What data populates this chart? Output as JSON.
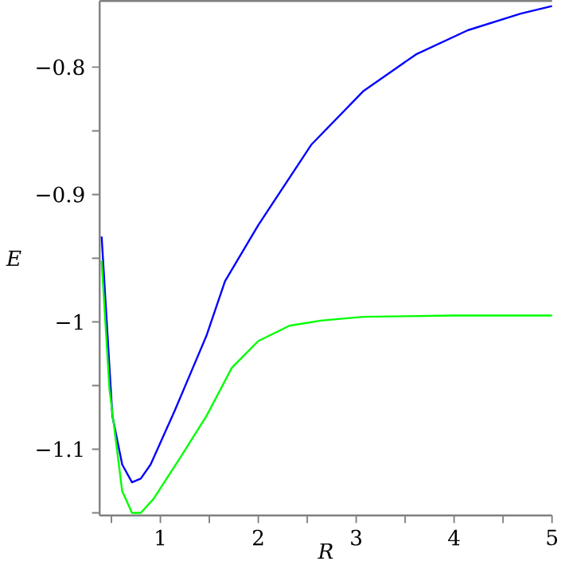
{
  "chart_data": {
    "type": "line",
    "xlabel": "*R*",
    "ylabel": "*E*",
    "xlim": [
      0.38,
      5
    ],
    "ylim": [
      -1.152,
      -0.748
    ],
    "xticks": [
      {
        "value": 0.5,
        "label": null
      },
      1,
      {
        "value": 1.5,
        "label": null
      },
      2,
      {
        "value": 2.5,
        "label": null
      },
      3,
      {
        "value": 3.5,
        "label": null
      },
      4,
      {
        "value": 4.5,
        "label": null
      },
      5
    ],
    "yticks": [
      {
        "value": -1.15,
        "label": null
      },
      {
        "value": -1.1,
        "label": "−1.1"
      },
      {
        "value": -1.05,
        "label": null
      },
      {
        "value": -1,
        "label": "−1"
      },
      {
        "value": -0.95,
        "label": null
      },
      {
        "value": -0.9,
        "label": "−0.9"
      },
      {
        "value": -0.85,
        "label": null
      },
      {
        "value": -0.8,
        "label": "−0.8"
      }
    ],
    "series": [
      {
        "color": "#0000ff",
        "x": [
          0.4,
          0.51,
          0.61,
          0.71,
          0.8,
          0.9,
          1.145,
          1.47,
          1.66,
          2.0,
          2.54,
          3.07,
          3.61,
          4.14,
          4.68,
          5.0
        ],
        "values": [
          -0.933,
          -1.074,
          -1.112,
          -1.126,
          -1.123,
          -1.112,
          -1.07,
          -1.011,
          -0.968,
          -0.924,
          -0.861,
          -0.819,
          -0.79,
          -0.771,
          -0.758,
          -0.752
        ]
      },
      {
        "color": "#00ff00",
        "x": [
          0.4,
          0.48,
          0.61,
          0.71,
          0.8,
          0.93,
          1.2,
          1.47,
          1.73,
          2.0,
          2.32,
          2.64,
          3.07,
          4.0,
          5.0
        ],
        "values": [
          -0.952,
          -1.053,
          -1.133,
          -1.15,
          -1.15,
          -1.139,
          -1.107,
          -1.074,
          -1.036,
          -1.015,
          -1.003,
          -0.999,
          -0.996,
          -0.995,
          -0.995
        ]
      }
    ]
  }
}
